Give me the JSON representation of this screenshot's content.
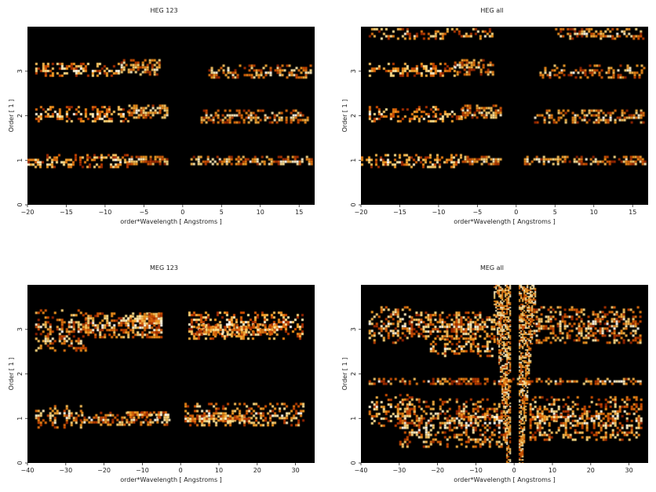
{
  "chart_data": [
    {
      "type": "heatmap",
      "title": "HEG 123",
      "xlabel": "order*Wavelength [ Angstroms ]",
      "ylabel": "Order [ 1 ]",
      "xlim": [
        -20,
        17
      ],
      "ylim": [
        0,
        4
      ],
      "xticks": [
        -20,
        -15,
        -10,
        -5,
        0,
        5,
        10,
        15
      ],
      "yticks": [
        0,
        1,
        2,
        3
      ],
      "colormap": [
        "#000000",
        "#7a1000",
        "#d04a00",
        "#f59a1e",
        "#ffe08a",
        "#ffffff"
      ]
    },
    {
      "type": "heatmap",
      "title": "HEG all",
      "xlabel": "order*Wavelength [ Angstroms ]",
      "ylabel": "Order [ 1 ]",
      "xlim": [
        -20,
        17
      ],
      "ylim": [
        0,
        4
      ],
      "xticks": [
        -20,
        -15,
        -10,
        -5,
        0,
        5,
        10,
        15
      ],
      "yticks": [
        0,
        1,
        2,
        3
      ],
      "colormap": [
        "#000000",
        "#7a1000",
        "#d04a00",
        "#f59a1e",
        "#ffe08a",
        "#ffffff"
      ]
    },
    {
      "type": "heatmap",
      "title": "MEG 123",
      "xlabel": "order*Wavelength [ Angstroms ]",
      "ylabel": "Order [ 1 ]",
      "xlim": [
        -40,
        35
      ],
      "ylim": [
        0,
        4
      ],
      "xticks": [
        -40,
        -30,
        -20,
        -10,
        0,
        10,
        20,
        30
      ],
      "yticks": [
        0,
        1,
        2,
        3
      ],
      "colormap": [
        "#000000",
        "#7a1000",
        "#d04a00",
        "#f59a1e",
        "#ffe08a",
        "#ffffff"
      ]
    },
    {
      "type": "heatmap",
      "title": "MEG all",
      "xlabel": "order*Wavelength [ Angstroms ]",
      "ylabel": "Order [ 1 ]",
      "xlim": [
        -40,
        35
      ],
      "ylim": [
        0,
        4
      ],
      "xticks": [
        -40,
        -30,
        -20,
        -10,
        0,
        10,
        20,
        30
      ],
      "yticks": [
        0,
        1,
        2,
        3
      ],
      "colormap": [
        "#000000",
        "#7a1000",
        "#d04a00",
        "#f59a1e",
        "#ffe08a",
        "#ffffff"
      ]
    }
  ]
}
